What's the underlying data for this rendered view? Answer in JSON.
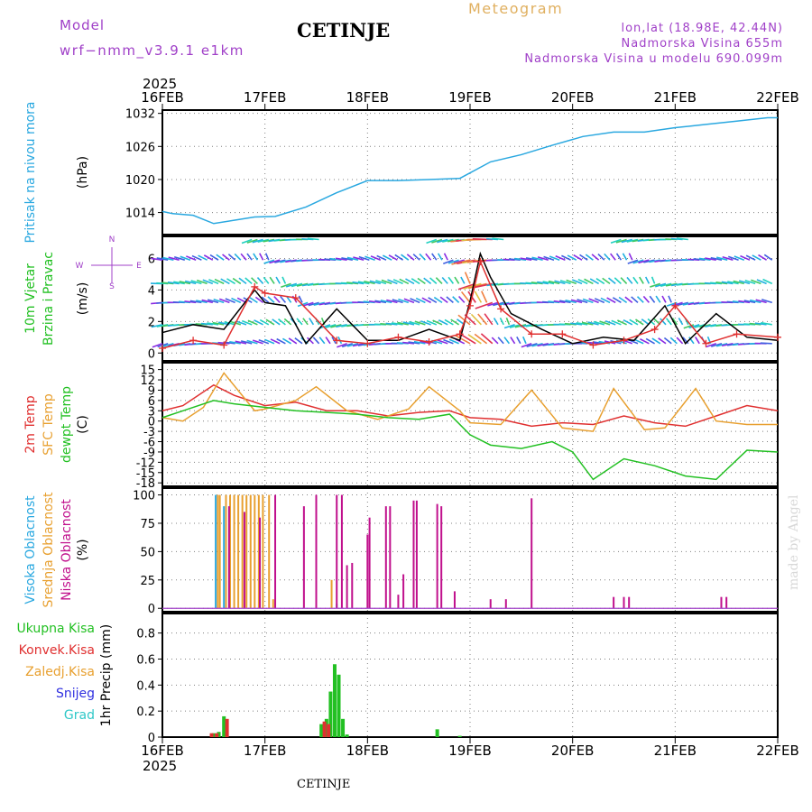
{
  "header": {
    "model_label": "Model",
    "model_name": "wrf−nmm_v3.9.1  e1km",
    "station": "CETINJE",
    "meteogram": "Meteogram",
    "lonlat": "lon,lat (18.98E, 42.44N)",
    "altitude": "Nadmorska Visina 655m",
    "model_altitude": "Nadmorska Visina u modelu 690.099m",
    "credit": "made by Angel",
    "footer_station": "CETINJE"
  },
  "colors": {
    "purple": "#a040c8",
    "cyan": "#2aa8e0",
    "green": "#22c022",
    "red": "#e03030",
    "orange": "#e8a030",
    "magenta": "#c0108c",
    "blue": "#3030e0",
    "teal": "#30c8c8",
    "gold": "#e0b060",
    "grid": "#808080"
  },
  "chart_data": [
    {
      "id": "pressure",
      "type": "line",
      "year": "2025",
      "x_tick_labels": [
        "16FEB",
        "17FEB",
        "18FEB",
        "19FEB",
        "20FEB",
        "21FEB",
        "22FEB"
      ],
      "ylabel_side": "Pritisak na nivou mora",
      "ylabel": "(hPa)",
      "yticks": [
        1014,
        1020,
        1026,
        1032
      ],
      "ylim": [
        1010,
        1032.6
      ],
      "series": [
        {
          "color": "cyan",
          "x": [
            0,
            0.1,
            0.3,
            0.5,
            0.7,
            0.9,
            1.1,
            1.4,
            1.7,
            2.0,
            2.3,
            2.6,
            2.9,
            3.2,
            3.5,
            3.8,
            4.1,
            4.4,
            4.7,
            5.0,
            5.3,
            5.6,
            5.9,
            6.0
          ],
          "y": [
            1014.2,
            1013.8,
            1013.5,
            1012.0,
            1012.6,
            1013.2,
            1013.3,
            1015.0,
            1017.6,
            1019.8,
            1019.8,
            1020.0,
            1020.2,
            1023.2,
            1024.5,
            1026.2,
            1027.8,
            1028.6,
            1028.6,
            1029.4,
            1030.0,
            1030.6,
            1031.2,
            1031.2
          ]
        }
      ]
    },
    {
      "id": "wind",
      "type": "line",
      "ylabel_side": [
        "10m Vjetar",
        "Brzina i Pravac"
      ],
      "ylabel": "(m/s)",
      "yticks": [
        0,
        2,
        4,
        6
      ],
      "ylim": [
        -0.5,
        7.4
      ],
      "compass": "N ^ W <-|-> E v S",
      "barb_rows": [
        0.6,
        1.8,
        3.2,
        4.4,
        5.9,
        7.2
      ],
      "series": [
        {
          "name": "speed",
          "color": "black",
          "x": [
            0,
            0.3,
            0.6,
            0.9,
            1.0,
            1.2,
            1.4,
            1.7,
            2.0,
            2.3,
            2.6,
            2.9,
            3.0,
            3.1,
            3.2,
            3.4,
            3.7,
            4.0,
            4.3,
            4.6,
            4.9,
            5.1,
            5.4,
            5.7,
            6.0
          ],
          "y": [
            1.3,
            1.8,
            1.5,
            4.0,
            3.2,
            3.0,
            0.6,
            2.8,
            0.8,
            0.8,
            1.5,
            0.8,
            3.3,
            6.3,
            4.8,
            2.5,
            1.5,
            0.6,
            1.0,
            0.8,
            3.0,
            0.6,
            2.5,
            1.0,
            0.8
          ]
        },
        {
          "name": "gust",
          "color": "red",
          "marker": "+",
          "x": [
            0,
            0.3,
            0.6,
            0.9,
            1.0,
            1.3,
            1.7,
            2.0,
            2.3,
            2.6,
            2.9,
            3.0,
            3.1,
            3.3,
            3.6,
            3.9,
            4.2,
            4.5,
            4.8,
            5.0,
            5.3,
            5.6,
            6.0
          ],
          "y": [
            0.3,
            0.8,
            0.5,
            4.2,
            3.8,
            3.5,
            0.8,
            0.6,
            1.0,
            0.7,
            1.2,
            3.0,
            5.8,
            2.8,
            1.2,
            1.2,
            0.5,
            0.8,
            1.5,
            3.0,
            0.6,
            1.2,
            1.0
          ]
        }
      ]
    },
    {
      "id": "temperature",
      "type": "line",
      "ylabel_side": [
        "2m Temp",
        "SFC Temp",
        "dewpt Temp"
      ],
      "ylabel": "(C)",
      "yticks": [
        15,
        12,
        9,
        6,
        3,
        0,
        -3,
        -6,
        -9,
        -12,
        -15,
        -18
      ],
      "ylim": [
        -19,
        17
      ],
      "series": [
        {
          "name": "2m Temp",
          "color": "red",
          "x": [
            0,
            0.2,
            0.5,
            0.7,
            1.0,
            1.3,
            1.6,
            1.9,
            2.2,
            2.5,
            2.8,
            3.0,
            3.3,
            3.6,
            3.9,
            4.2,
            4.5,
            4.8,
            5.1,
            5.4,
            5.7,
            6.0
          ],
          "y": [
            3.0,
            4.5,
            10.5,
            7.5,
            4.5,
            5.5,
            3.0,
            3.0,
            1.5,
            2.5,
            3.0,
            1.0,
            0.5,
            -1.5,
            -0.5,
            -1.0,
            1.5,
            -0.5,
            -1.5,
            1.5,
            4.5,
            3.0
          ]
        },
        {
          "name": "SFC Temp",
          "color": "orange",
          "x": [
            0,
            0.2,
            0.4,
            0.6,
            0.9,
            1.0,
            1.3,
            1.5,
            1.8,
            2.1,
            2.4,
            2.6,
            2.9,
            3.0,
            3.3,
            3.6,
            3.9,
            4.2,
            4.4,
            4.7,
            4.9,
            5.2,
            5.4,
            5.7,
            6.0
          ],
          "y": [
            1.0,
            0.0,
            4.0,
            14.0,
            3.0,
            3.5,
            6.0,
            10.0,
            3.0,
            0.5,
            3.5,
            10.0,
            3.0,
            -0.5,
            -1.0,
            9.0,
            -2.0,
            -3.0,
            9.5,
            -2.5,
            -2.0,
            9.5,
            0.0,
            -1.0,
            -1.0
          ]
        },
        {
          "name": "dewpt Temp",
          "color": "green",
          "x": [
            0,
            0.2,
            0.5,
            0.7,
            1.0,
            1.3,
            1.6,
            1.9,
            2.2,
            2.5,
            2.8,
            3.0,
            3.2,
            3.5,
            3.8,
            4.0,
            4.2,
            4.5,
            4.8,
            5.1,
            5.4,
            5.7,
            6.0
          ],
          "y": [
            1.0,
            3.0,
            6.0,
            5.0,
            4.0,
            3.0,
            2.5,
            2.0,
            1.0,
            0.5,
            2.0,
            -4.0,
            -7.0,
            -8.0,
            -6.0,
            -9.0,
            -17.0,
            -11.0,
            -13.0,
            -16.0,
            -17.0,
            -8.5,
            -9.0
          ]
        }
      ]
    },
    {
      "id": "clouds",
      "type": "bar",
      "ylabel_side": [
        "Visoka Oblacnost",
        "Srednja Oblacnost",
        "Niska Oblacnost"
      ],
      "ylabel": "(%)",
      "yticks": [
        0,
        25,
        50,
        75,
        100
      ],
      "ylim": [
        -3,
        106
      ],
      "series": [
        {
          "name": "Visoka Oblacnost",
          "color": "cyan",
          "x": [
            0.52,
            0.6,
            1.7
          ],
          "y": [
            100,
            90,
            4
          ]
        },
        {
          "name": "Srednja Oblacnost",
          "color": "orange",
          "x": [
            0.54,
            0.56,
            0.62,
            0.66,
            0.7,
            0.74,
            0.78,
            0.82,
            0.86,
            0.9,
            0.94,
            0.98,
            1.04,
            1.08,
            1.65
          ],
          "y": [
            100,
            100,
            100,
            100,
            100,
            100,
            100,
            100,
            100,
            100,
            100,
            100,
            100,
            8,
            25
          ]
        },
        {
          "name": "Niska Oblacnost",
          "color": "magenta",
          "x": [
            0.65,
            0.8,
            0.95,
            1.1,
            1.38,
            1.5,
            1.7,
            1.75,
            1.8,
            1.85,
            2.0,
            2.02,
            2.18,
            2.22,
            2.3,
            2.35,
            2.45,
            2.48,
            2.68,
            2.72,
            2.85,
            3.2,
            3.35,
            3.6,
            4.4,
            4.5,
            4.55,
            5.45,
            5.5
          ],
          "y": [
            90,
            85,
            80,
            100,
            90,
            100,
            100,
            100,
            38,
            40,
            65,
            80,
            90,
            90,
            12,
            30,
            95,
            95,
            92,
            90,
            15,
            8,
            8,
            97,
            10,
            10,
            10,
            10,
            10
          ]
        }
      ]
    },
    {
      "id": "precip",
      "type": "bar",
      "ylabel_side": [
        "Ukupna Kisa",
        "Konvek.Kisa",
        "Zaledj.Kisa",
        "Snijeg",
        "Grad"
      ],
      "ylabel": "1hr Precip (mm)",
      "yticks": [
        0,
        0.2,
        0.4,
        0.6,
        0.8
      ],
      "ylim": [
        0,
        0.95
      ],
      "x_tick_labels": [
        "16FEB",
        "17FEB",
        "18FEB",
        "19FEB",
        "20FEB",
        "21FEB",
        "22FEB"
      ],
      "year": "2025",
      "series": [
        {
          "name": "Ukupna Kisa",
          "color": "green",
          "x": [
            0.5,
            0.55,
            0.6,
            1.55,
            1.6,
            1.64,
            1.68,
            1.72,
            1.76,
            1.8,
            2.68,
            2.9
          ],
          "y": [
            0.03,
            0.04,
            0.16,
            0.1,
            0.14,
            0.35,
            0.56,
            0.48,
            0.14,
            0.02,
            0.06,
            0.01
          ]
        },
        {
          "name": "Konvek.Kisa",
          "color": "red",
          "x": [
            0.48,
            0.53,
            0.63,
            1.58,
            1.62
          ],
          "y": [
            0.03,
            0.03,
            0.14,
            0.12,
            0.1
          ]
        }
      ]
    }
  ]
}
